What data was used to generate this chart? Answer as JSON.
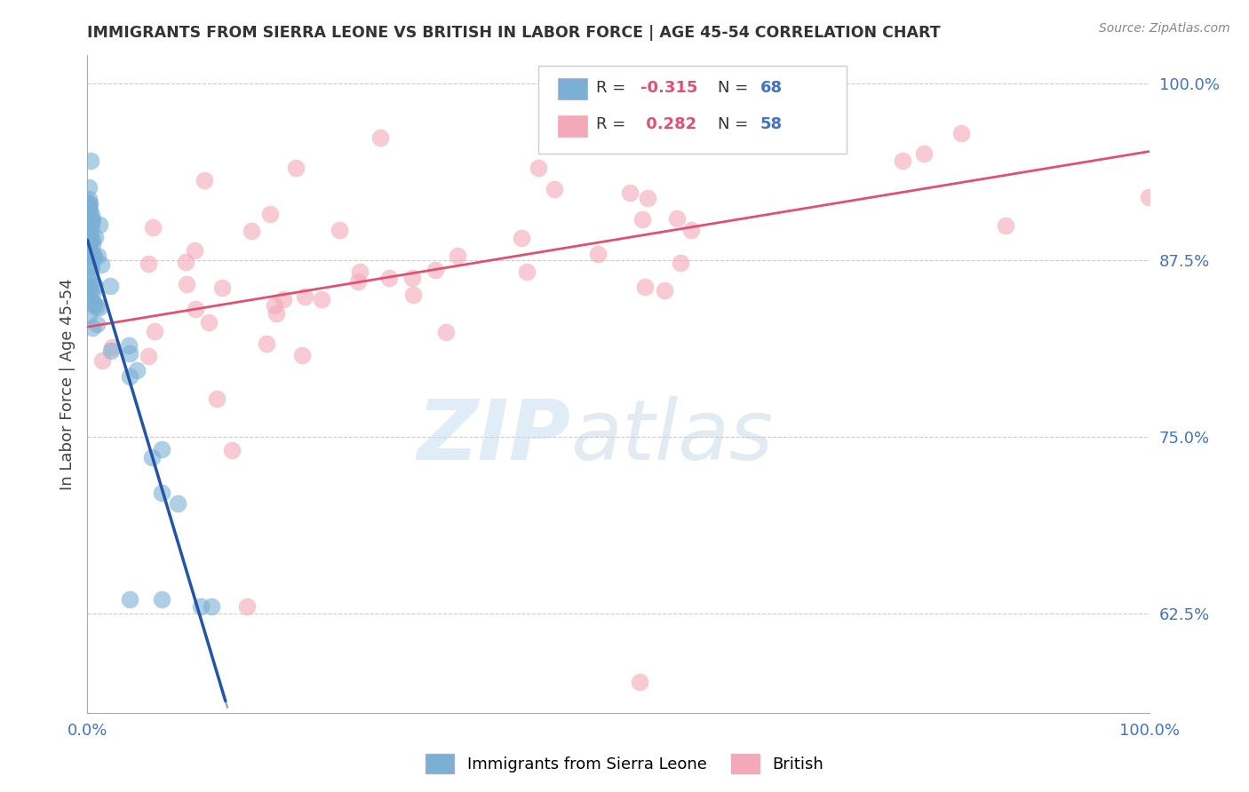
{
  "title": "IMMIGRANTS FROM SIERRA LEONE VS BRITISH IN LABOR FORCE | AGE 45-54 CORRELATION CHART",
  "source": "Source: ZipAtlas.com",
  "ylabel": "In Labor Force | Age 45-54",
  "legend_entries": [
    {
      "label": "Immigrants from Sierra Leone",
      "color": "#a8c4e0",
      "R": "-0.315",
      "N": "68"
    },
    {
      "label": "British",
      "color": "#f4a9b8",
      "R": "0.282",
      "N": "58"
    }
  ],
  "blue_scatter_color": "#7bafd4",
  "pink_scatter_color": "#f4a9b8",
  "blue_line_color": "#2255aa",
  "blue_dash_color": "#8899cc",
  "pink_line_color": "#e05070",
  "xmin": 0.0,
  "xmax": 1.0,
  "ymin": 0.555,
  "ymax": 1.02,
  "ytick_values": [
    0.625,
    0.75,
    0.875,
    1.0
  ],
  "ytick_labels": [
    "62.5%",
    "75.0%",
    "87.5%",
    "100.0%"
  ],
  "xtick_values": [
    0.0,
    1.0
  ],
  "xtick_labels": [
    "0.0%",
    "100.0%"
  ],
  "title_color": "#333333",
  "axis_label_color": "#444444",
  "tick_label_color": "#4472c4",
  "grid_color": "#cccccc",
  "R_color": "#e05070",
  "N_color": "#4472c4"
}
